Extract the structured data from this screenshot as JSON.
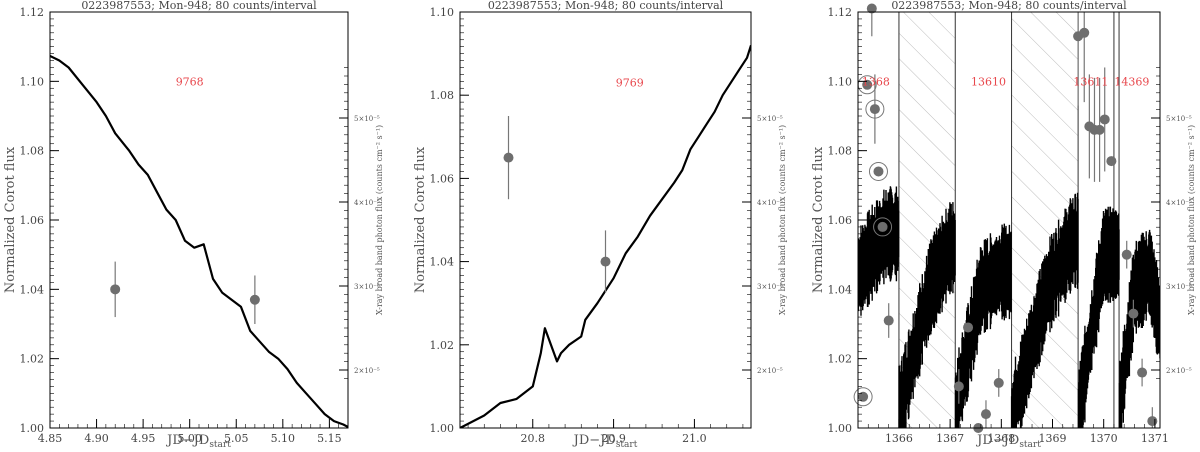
{
  "chart_data": [
    {
      "type": "scatter",
      "title": "0223987553; Mon-948; 80 counts/interval",
      "xlabel": "JD−JD",
      "xlabel_sub": "start",
      "ylabel": "Normalized Corot flux",
      "ylabel_right": "X-ray broad band photon flux (counts cm⁻² s⁻¹)",
      "xlim": [
        4.85,
        5.17
      ],
      "ylim": [
        1.0,
        1.12
      ],
      "x_ticks": [
        "4.85",
        "4.90",
        "4.95",
        "5.00",
        "5.05",
        "5.10",
        "5.15"
      ],
      "y_ticks": [
        "1.00",
        "1.02",
        "1.04",
        "1.06",
        "1.08",
        "1.10",
        "1.12"
      ],
      "right_ticks": [
        "2×10⁻⁵",
        "3×10⁻⁵",
        "4×10⁻⁵",
        "5×10⁻⁵"
      ],
      "obs_labels": [
        {
          "text": "9768",
          "x": 5.0,
          "y": 1.1
        }
      ],
      "light_curve": {
        "x": [
          4.845,
          4.86,
          4.87,
          4.885,
          4.9,
          4.91,
          4.92,
          4.935,
          4.945,
          4.955,
          4.965,
          4.975,
          4.985,
          4.995,
          5.005,
          5.015,
          5.025,
          5.035,
          5.045,
          5.055,
          5.065,
          5.075,
          5.085,
          5.095,
          5.105,
          5.115,
          5.125,
          5.135,
          5.145,
          5.155,
          5.165,
          5.172
        ],
        "y": [
          1.108,
          1.106,
          1.104,
          1.099,
          1.094,
          1.09,
          1.085,
          1.08,
          1.076,
          1.073,
          1.068,
          1.063,
          1.06,
          1.054,
          1.052,
          1.053,
          1.043,
          1.039,
          1.037,
          1.035,
          1.028,
          1.025,
          1.022,
          1.02,
          1.017,
          1.013,
          1.01,
          1.007,
          1.004,
          1.002,
          1.001,
          1.0
        ]
      },
      "points": [
        {
          "x": 4.92,
          "y": 1.04,
          "err": 0.008
        },
        {
          "x": 5.07,
          "y": 1.037,
          "err": 0.007
        }
      ]
    },
    {
      "type": "scatter",
      "title": "0223987553; Mon-948; 80 counts/interval",
      "xlabel": "JD−JD",
      "xlabel_sub": "start",
      "ylabel": "Normalized Corot flux",
      "ylabel_right": "X-ray broad band photon flux (counts cm⁻² s⁻¹)",
      "xlim": [
        20.71,
        21.07
      ],
      "ylim": [
        1.0,
        1.1
      ],
      "x_ticks": [
        "20.8",
        "20.9",
        "21.0"
      ],
      "y_ticks": [
        "1.00",
        "1.02",
        "1.04",
        "1.06",
        "1.08",
        "1.10"
      ],
      "right_ticks": [
        "2×10⁻⁵",
        "3×10⁻⁵",
        "4×10⁻⁵",
        "5×10⁻⁵"
      ],
      "obs_labels": [
        {
          "text": "9769",
          "x": 20.92,
          "y": 1.083
        }
      ],
      "light_curve": {
        "x": [
          20.71,
          20.74,
          20.76,
          20.78,
          20.8,
          20.81,
          20.815,
          20.83,
          20.835,
          20.845,
          20.86,
          20.865,
          20.88,
          20.89,
          20.9,
          20.915,
          20.93,
          20.945,
          20.96,
          20.975,
          20.985,
          20.995,
          21.005,
          21.015,
          21.025,
          21.035,
          21.045,
          21.055,
          21.065,
          21.07
        ],
        "y": [
          1.0,
          1.003,
          1.006,
          1.007,
          1.01,
          1.018,
          1.024,
          1.016,
          1.018,
          1.02,
          1.022,
          1.026,
          1.03,
          1.033,
          1.036,
          1.042,
          1.046,
          1.051,
          1.055,
          1.059,
          1.062,
          1.067,
          1.07,
          1.073,
          1.076,
          1.08,
          1.083,
          1.086,
          1.089,
          1.092
        ]
      },
      "points": [
        {
          "x": 20.77,
          "y": 1.065,
          "err": 0.01
        },
        {
          "x": 20.89,
          "y": 1.04,
          "err": 0.0075
        }
      ]
    },
    {
      "type": "scatter",
      "title": "0223987553; Mon-948; 80 counts/interval",
      "xlabel": "JD−JD",
      "xlabel_sub": "start",
      "ylabel": "Normalized Corot flux",
      "ylabel_right": "X-ray broad band photon flux (counts cm⁻² s⁻¹)",
      "xlim": [
        1365.2,
        1371.1
      ],
      "ylim": [
        1.0,
        1.12
      ],
      "x_ticks": [
        "1366",
        "1367",
        "1368",
        "1369",
        "1370",
        "1371"
      ],
      "y_ticks": [
        "1.00",
        "1.02",
        "1.04",
        "1.06",
        "1.08",
        "1.10",
        "1.12"
      ],
      "right_ticks": [
        "2×10⁻⁵",
        "3×10⁻⁵",
        "4×10⁻⁵",
        "5×10⁻⁵"
      ],
      "obs_labels": [
        {
          "text": "1368",
          "x": 1365.55,
          "y": 1.1
        },
        {
          "text": "13610",
          "x": 1367.75,
          "y": 1.1
        },
        {
          "text": "13611",
          "x": 1369.75,
          "y": 1.1
        },
        {
          "text": "14369",
          "x": 1370.55,
          "y": 1.1
        }
      ],
      "hatched_intervals": [
        [
          1366.0,
          1367.1
        ],
        [
          1368.2,
          1369.5
        ]
      ],
      "windows": [
        [
          1365.2,
          1366.0
        ],
        [
          1367.1,
          1368.2
        ],
        [
          1369.5,
          1370.2
        ],
        [
          1370.3,
          1371.1
        ]
      ],
      "light_curve_anchors": {
        "x": [
          1365.2,
          1365.45,
          1365.75,
          1366.0,
          1366.6,
          1367.0,
          1367.1,
          1367.6,
          1368.0,
          1368.2,
          1368.9,
          1369.4,
          1369.5,
          1370.0,
          1370.3,
          1370.6,
          1370.9,
          1371.1
        ],
        "y": [
          1.044,
          1.05,
          1.056,
          1.004,
          1.04,
          1.052,
          1.005,
          1.04,
          1.045,
          1.003,
          1.04,
          1.054,
          1.003,
          1.05,
          1.005,
          1.04,
          1.045,
          1.03
        ]
      },
      "points": [
        {
          "x": 1365.3,
          "y": 1.009,
          "err": 0.0,
          "ring": true
        },
        {
          "x": 1365.38,
          "y": 1.099,
          "err": 0.0,
          "ring": true
        },
        {
          "x": 1365.47,
          "y": 1.121,
          "err": 0.008,
          "ring": false
        },
        {
          "x": 1365.53,
          "y": 1.092,
          "err": 0.01,
          "ring": true
        },
        {
          "x": 1365.6,
          "y": 1.074,
          "err": 0.0,
          "ring": true
        },
        {
          "x": 1365.68,
          "y": 1.058,
          "err": 0.0,
          "ring": true
        },
        {
          "x": 1365.8,
          "y": 1.031,
          "err": 0.005,
          "ring": false
        },
        {
          "x": 1367.17,
          "y": 1.012,
          "err": 0.005,
          "ring": false
        },
        {
          "x": 1367.35,
          "y": 1.029,
          "err": 0.0,
          "ring": false
        },
        {
          "x": 1367.55,
          "y": 1.0,
          "err": 0.0,
          "ring": false
        },
        {
          "x": 1367.7,
          "y": 1.004,
          "err": 0.004,
          "ring": false
        },
        {
          "x": 1367.95,
          "y": 1.013,
          "err": 0.004,
          "ring": false
        },
        {
          "x": 1369.5,
          "y": 1.113,
          "err": 0.02,
          "ring": false
        },
        {
          "x": 1369.62,
          "y": 1.114,
          "err": 0.02,
          "ring": false
        },
        {
          "x": 1369.72,
          "y": 1.087,
          "err": 0.015,
          "ring": false
        },
        {
          "x": 1369.82,
          "y": 1.086,
          "err": 0.015,
          "ring": false
        },
        {
          "x": 1369.92,
          "y": 1.086,
          "err": 0.015,
          "ring": false
        },
        {
          "x": 1370.02,
          "y": 1.089,
          "err": 0.015,
          "ring": false
        },
        {
          "x": 1370.15,
          "y": 1.077,
          "err": 0.0,
          "ring": false
        },
        {
          "x": 1370.45,
          "y": 1.05,
          "err": 0.004,
          "ring": false
        },
        {
          "x": 1370.58,
          "y": 1.033,
          "err": 0.004,
          "ring": false
        },
        {
          "x": 1370.75,
          "y": 1.016,
          "err": 0.004,
          "ring": false
        },
        {
          "x": 1370.95,
          "y": 1.002,
          "err": 0.004,
          "ring": false
        }
      ]
    }
  ]
}
